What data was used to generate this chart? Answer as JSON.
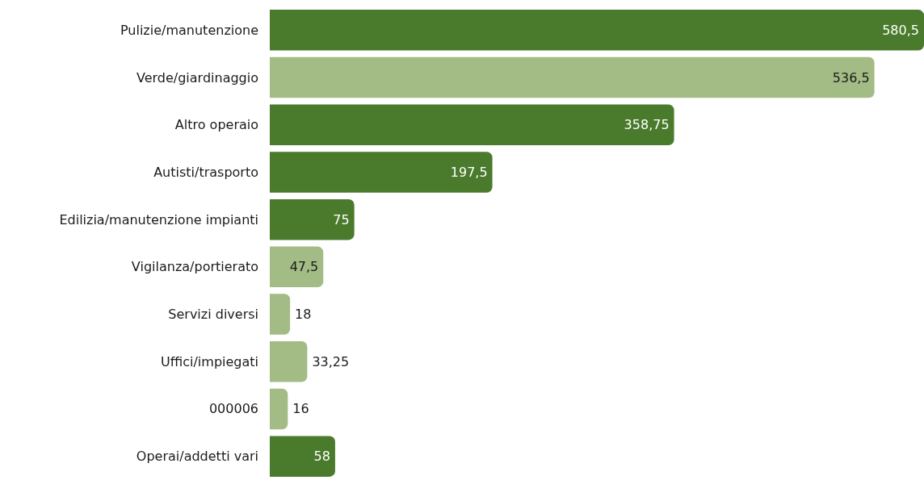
{
  "chart_data": {
    "type": "bar",
    "orientation": "horizontal",
    "categories": [
      "Pulizie/manutenzione",
      "Verde/giardinaggio",
      "Altro operaio",
      "Autisti/trasporto",
      "Edilizia/manutenzione impianti",
      "Vigilanza/portierato",
      "Servizi diversi",
      "Uffici/impiegati",
      "000006",
      "Operai/addetti vari"
    ],
    "values": [
      580.5,
      536.5,
      358.75,
      197.5,
      75,
      47.5,
      18,
      33.25,
      16,
      58
    ],
    "colors": [
      "#4a7a2c",
      "#a3bb85",
      "#4a7a2c",
      "#4a7a2c",
      "#4a7a2c",
      "#a3bb85",
      "#a3bb85",
      "#a3bb85",
      "#a3bb85",
      "#4a7a2c"
    ],
    "value_labels": [
      "580,5",
      "536,5",
      "358,75",
      "197,5",
      "75",
      "47,5",
      "18",
      "33,25",
      "16",
      "58"
    ]
  }
}
